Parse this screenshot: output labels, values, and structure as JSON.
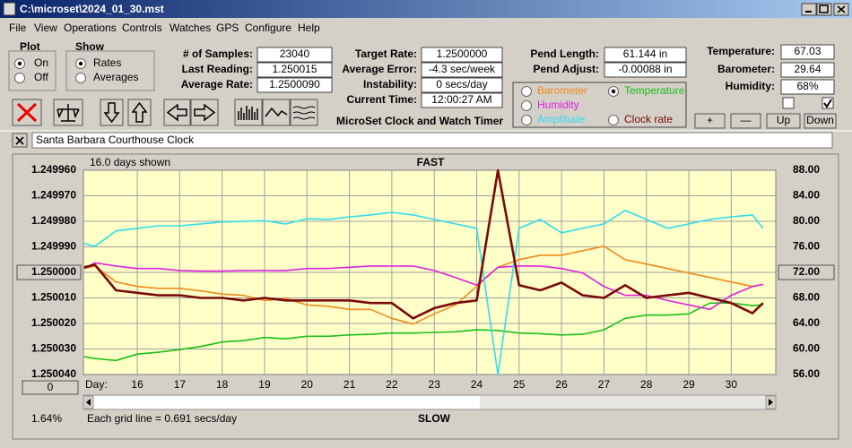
{
  "window": {
    "title": "C:\\microset\\2024_01_30.mst"
  },
  "menu": [
    "File",
    "View",
    "Operations",
    "Controls",
    "Watches",
    "GPS",
    "Configure",
    "Help"
  ],
  "plot_group": {
    "label": "Plot",
    "options": [
      "On",
      "Off"
    ],
    "selected": "On"
  },
  "show_group": {
    "label": "Show",
    "options": [
      "Rates",
      "Averages"
    ],
    "selected": "Rates"
  },
  "fields": [
    {
      "label": "# of Samples:",
      "value": "23040"
    },
    {
      "label": "Last Reading:",
      "value": "1.250015"
    },
    {
      "label": "Average Rate:",
      "value": "1.2500090"
    },
    {
      "label": "Target Rate:",
      "value": "1.2500000"
    },
    {
      "label": "Average Error:",
      "value": "-4.3 sec/week"
    },
    {
      "label": "Instability:",
      "value": "0 secs/day"
    },
    {
      "label": "Current Time:",
      "value": "12:00:27 AM"
    },
    {
      "label": "Pend Length:",
      "value": "61.144 in"
    },
    {
      "label": "Pend Adjust:",
      "value": "-0.00088 in"
    },
    {
      "label": "Temperature:",
      "value": "67.03"
    },
    {
      "label": "Barometer:",
      "value": "29.64"
    },
    {
      "label": "Humidity:",
      "value": "68%"
    }
  ],
  "app_label": "MicroSet Clock and Watch Timer",
  "buttons": [
    "+",
    "—",
    "Up",
    "Down"
  ],
  "checkboxes": [
    false,
    true
  ],
  "clock_name": "Santa Barbara Courthouse Clock",
  "chart_data": {
    "type": "line",
    "days_shown": "16.0 days shown",
    "top_label": "FAST",
    "bottom_label": "SLOW",
    "x_label": "Day:",
    "grid_note": "Each grid line = 0.691 secs/day",
    "left_readout": "1.64%",
    "scroll_value": "0",
    "legend_selected": "Temperature",
    "grid": true,
    "x": [
      14.75,
      15,
      15.5,
      16,
      16.5,
      17,
      17.5,
      18,
      18.5,
      19,
      19.5,
      20,
      20.5,
      21,
      21.5,
      22,
      22.5,
      23,
      23.5,
      24,
      24.5,
      25,
      25.5,
      26,
      26.5,
      27,
      27.5,
      28,
      28.5,
      29,
      29.5,
      30,
      30.5,
      30.75
    ],
    "xlim": [
      14.73,
      31.05
    ],
    "xticks": [
      16,
      17,
      18,
      19,
      20,
      21,
      22,
      23,
      24,
      25,
      26,
      27,
      28,
      29,
      30
    ],
    "ylim": [
      1.25004,
      1.24996
    ],
    "yticks": [
      {
        "value": 1.24996,
        "label": "1.249960"
      },
      {
        "value": 1.24997,
        "label": "1.249970"
      },
      {
        "value": 1.24998,
        "label": "1.249980"
      },
      {
        "value": 1.24999,
        "label": "1.249990"
      },
      {
        "value": 1.25,
        "label": "1.250000"
      },
      {
        "value": 1.25001,
        "label": "1.250010"
      },
      {
        "value": 1.25002,
        "label": "1.250020"
      },
      {
        "value": 1.25003,
        "label": "1.250030"
      },
      {
        "value": 1.25004,
        "label": "1.250040"
      }
    ],
    "y2lim": [
      56,
      88
    ],
    "y2ticks": [
      {
        "value": 88,
        "label": "88.00"
      },
      {
        "value": 84,
        "label": "84.00"
      },
      {
        "value": 80,
        "label": "80.00"
      },
      {
        "value": 76,
        "label": "76.00"
      },
      {
        "value": 72,
        "label": "72.00"
      },
      {
        "value": 68,
        "label": "68.00"
      },
      {
        "value": 64,
        "label": "64.00"
      },
      {
        "value": 60,
        "label": "60.00"
      },
      {
        "value": 56,
        "label": "56.00"
      }
    ],
    "series": [
      {
        "name": "Barometer",
        "color": "#f08a1c",
        "axis": "y2",
        "values": [
          72.6,
          73,
          70.5,
          69.8,
          69.5,
          69.5,
          69.1,
          68.6,
          68.4,
          67.6,
          67.9,
          66.9,
          66.7,
          66.2,
          66.2,
          64.8,
          63.9,
          65.5,
          66.9,
          69.8,
          72.8,
          74,
          74.7,
          74.7,
          75.4,
          76.1,
          74,
          73.3,
          72.6,
          71.9,
          71.2,
          70.5,
          69.8,
          70.1
        ]
      },
      {
        "name": "Temperature",
        "color": "#1cbf1c",
        "axis": "y2",
        "values": [
          58.8,
          58.5,
          58.2,
          59.2,
          59.5,
          59.9,
          60.4,
          61.1,
          61.3,
          61.8,
          61.6,
          62,
          62,
          62.2,
          62.3,
          62.5,
          62.5,
          62.6,
          62.7,
          63,
          62.9,
          62.5,
          62.4,
          62.2,
          62.3,
          63,
          64.8,
          65.3,
          65.3,
          65.5,
          67.2,
          67.2,
          66.8,
          66.9
        ]
      },
      {
        "name": "Humidity",
        "color": "#e020e0",
        "axis": "y2",
        "values": [
          72.6,
          73.5,
          73,
          72.6,
          72.6,
          72.3,
          72.2,
          72.2,
          72.3,
          72.3,
          72.3,
          72.6,
          72.6,
          72.8,
          73,
          73,
          73,
          72.3,
          71.2,
          70,
          72.8,
          73,
          73,
          72.6,
          71.9,
          69.8,
          68.4,
          68.4,
          67.6,
          66.9,
          66.2,
          68.4,
          69.8,
          70.1
        ]
      },
      {
        "name": "Amplitude",
        "color": "#30dcee",
        "axis": "y2",
        "values": [
          76.5,
          76.1,
          78.5,
          78.9,
          79.3,
          79.3,
          79.6,
          79.9,
          80,
          80.1,
          79.6,
          80.4,
          80.3,
          80.7,
          81,
          81.4,
          81,
          80.3,
          79.6,
          78.9,
          56,
          78.9,
          80.3,
          78.2,
          78.9,
          79.6,
          81.7,
          80.3,
          78.9,
          79.6,
          80.3,
          80.7,
          81,
          78.9
        ]
      },
      {
        "name": "Clock rate",
        "color": "#7a0a0a",
        "axis": "y",
        "values": [
          1.249998,
          1.249997,
          1.250007,
          1.250008,
          1.250009,
          1.250009,
          1.25001,
          1.25001,
          1.250011,
          1.25001,
          1.250011,
          1.250011,
          1.250011,
          1.250011,
          1.250012,
          1.250012,
          1.250018,
          1.250014,
          1.250012,
          1.250011,
          1.24996,
          1.250005,
          1.250007,
          1.250004,
          1.250009,
          1.25001,
          1.250005,
          1.25001,
          1.250009,
          1.250008,
          1.25001,
          1.250012,
          1.250016,
          1.250012
        ]
      }
    ]
  }
}
